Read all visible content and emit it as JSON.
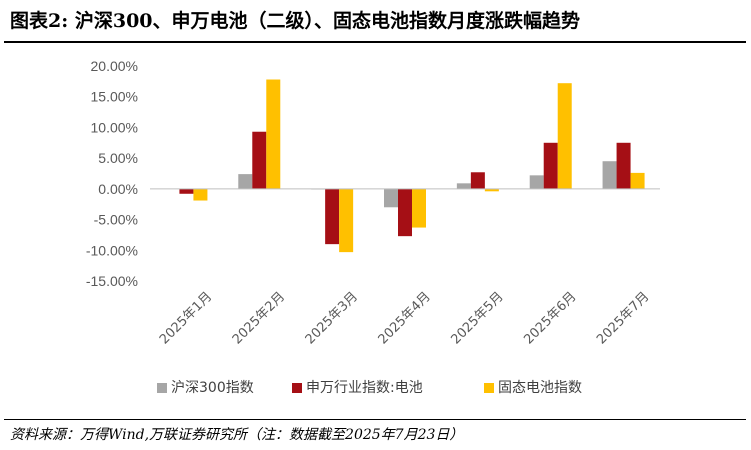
{
  "title": "图表2:  沪深300、申万电池（二级）、固态电池指数月度涨跌幅趋势",
  "source": "资料来源：万得Wind,万联证券研究所（注：数据截至2025年7月23日）",
  "chart_data": {
    "type": "bar",
    "categories": [
      "2025年1月",
      "2025年2月",
      "2025年3月",
      "2025年4月",
      "2025年5月",
      "2025年6月",
      "2025年7月"
    ],
    "series": [
      {
        "name": "沪深300指数",
        "color": "#A6A6A6",
        "values": [
          0.0,
          2.4,
          -0.1,
          -3.0,
          0.9,
          2.2,
          4.5
        ]
      },
      {
        "name": "申万行业指数:电池",
        "color": "#A50F15",
        "values": [
          -0.8,
          9.3,
          -9.0,
          -7.7,
          2.7,
          7.5,
          7.5
        ]
      },
      {
        "name": "固态电池指数",
        "color": "#FFC000",
        "values": [
          -1.9,
          17.8,
          -10.3,
          -6.3,
          -0.4,
          17.2,
          2.6
        ]
      }
    ],
    "yticks": [
      "20.00%",
      "15.00%",
      "10.00%",
      "5.00%",
      "0.00%",
      "-5.00%",
      "-10.00%",
      "-15.00%"
    ],
    "ylim": [
      -15,
      20
    ],
    "grid": false,
    "legend": "bottom"
  }
}
